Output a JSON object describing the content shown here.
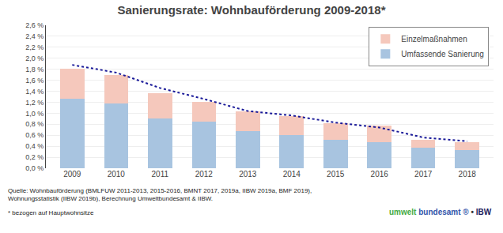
{
  "chart_data": {
    "type": "bar",
    "stacked": true,
    "title": "Sanierungsrate: Wohnbauförderung 2009-2018*",
    "categories": [
      "2009",
      "2010",
      "2011",
      "2012",
      "2013",
      "2014",
      "2015",
      "2016",
      "2017",
      "2018"
    ],
    "series": [
      {
        "name": "Umfassende Sanierung",
        "type": "bar",
        "color": "#A8C4E0",
        "values": [
          1.26,
          1.18,
          0.9,
          0.85,
          0.68,
          0.6,
          0.52,
          0.48,
          0.37,
          0.33
        ]
      },
      {
        "name": "Einzelmaßnahmen",
        "type": "bar",
        "color": "#F5C8BC",
        "values": [
          0.55,
          0.52,
          0.47,
          0.35,
          0.35,
          0.35,
          0.3,
          0.3,
          0.15,
          0.15
        ]
      },
      {
        "type": "line",
        "color": "#1a1a99",
        "line_style": "dotted",
        "values": [
          1.88,
          1.74,
          1.46,
          1.26,
          1.04,
          0.96,
          0.83,
          0.74,
          0.56,
          0.49
        ]
      }
    ],
    "ylim": [
      0.0,
      2.6
    ],
    "yticks": [
      {
        "value": 0.0,
        "label": "0,0 %"
      },
      {
        "value": 0.2,
        "label": "0,2 %"
      },
      {
        "value": 0.4,
        "label": "0,4 %"
      },
      {
        "value": 0.6,
        "label": "0,6 %"
      },
      {
        "value": 0.8,
        "label": "0,8 %"
      },
      {
        "value": 1.0,
        "label": "1,0 %"
      },
      {
        "value": 1.2,
        "label": "1,2 %"
      },
      {
        "value": 1.4,
        "label": "1,4 %"
      },
      {
        "value": 1.6,
        "label": "1,6 %"
      },
      {
        "value": 1.8,
        "label": "1,8 %"
      },
      {
        "value": 2.0,
        "label": "2,0 %"
      },
      {
        "value": 2.2,
        "label": "2,2 %"
      },
      {
        "value": 2.4,
        "label": "2,4 %"
      },
      {
        "value": 2.6,
        "label": "2,6 %"
      }
    ],
    "grid": true,
    "legend": "upper right",
    "annotations": [
      {
        "text": "Quelle: Wohnbauförderung (BMLFUW 2011-2013, 2015-2016, BMNT 2017, 2019a, IIBW 2019a, BMF 2019),\nWohnungsstatistik (IIBW 2019b), Berechnung Umweltbundesamt & IIBW.",
        "color": "#222222"
      },
      {
        "text": "* bezogen auf Hauptwohnsitze",
        "color": "#222222"
      },
      {
        "text": "umwelt",
        "color": "#44AA44"
      },
      {
        "text": "bundesamt",
        "color": "#3355AA"
      },
      {
        "text": "®",
        "color": "#3355AA"
      },
      {
        "text": "•",
        "color": "#333333"
      },
      {
        "text": "IBW",
        "color": "#1a1a5c"
      }
    ]
  }
}
